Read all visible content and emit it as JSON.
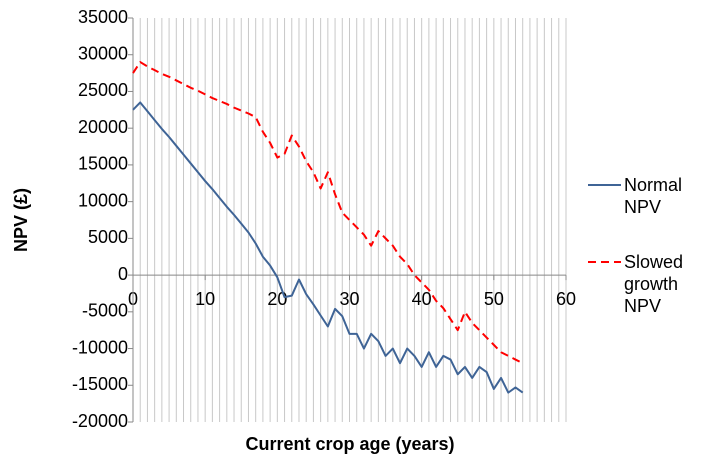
{
  "chart_data": {
    "type": "line",
    "x_label": "Current crop age (years)",
    "y_label": "NPV (£)",
    "x": [
      0,
      1,
      2,
      3,
      4,
      5,
      6,
      7,
      8,
      9,
      10,
      11,
      12,
      13,
      14,
      15,
      16,
      17,
      18,
      19,
      20,
      21,
      22,
      23,
      24,
      25,
      26,
      27,
      28,
      29,
      30,
      31,
      32,
      33,
      34,
      35,
      36,
      37,
      38,
      39,
      40,
      41,
      42,
      43,
      44,
      45,
      46,
      47,
      48,
      49,
      50,
      51,
      52,
      53,
      54
    ],
    "series": [
      {
        "name": "Normal NPV",
        "color": "#3f6496",
        "dash": false,
        "values": [
          22500,
          23500,
          22300,
          21100,
          19900,
          18800,
          17600,
          16400,
          15200,
          14000,
          12800,
          11700,
          10500,
          9300,
          8200,
          7000,
          5800,
          4300,
          2500,
          1300,
          -300,
          -3000,
          -2800,
          -600,
          -2600,
          -4000,
          -5500,
          -7000,
          -4600,
          -5600,
          -8000,
          -8000,
          -10000,
          -8000,
          -9000,
          -11000,
          -10000,
          -12000,
          -10000,
          -11000,
          -12500,
          -10500,
          -12500,
          -11000,
          -11500,
          -13500,
          -12500,
          -14000,
          -12500,
          -13200,
          -15500,
          -14000,
          -16000,
          -15300,
          -16000
        ]
      },
      {
        "name": "Slowed growth NPV",
        "color": "#ff0000",
        "dash": true,
        "values": [
          27500,
          29000,
          28400,
          27900,
          27400,
          27000,
          26500,
          26000,
          25500,
          25100,
          24600,
          24100,
          23700,
          23300,
          22800,
          22400,
          22000,
          21500,
          19500,
          18000,
          16000,
          16500,
          19000,
          17500,
          15500,
          14000,
          11800,
          14000,
          11000,
          8500,
          7500,
          6500,
          5500,
          4000,
          6000,
          5000,
          4000,
          2500,
          1500,
          0,
          -1000,
          -2000,
          -3500,
          -4500,
          -6000,
          -7500,
          -5000,
          -6500,
          -7500,
          -8500,
          -9500,
          -10500,
          -11000,
          -11500,
          -12000
        ]
      }
    ],
    "xlim": [
      0,
      60
    ],
    "xticks": [
      0,
      10,
      20,
      30,
      40,
      50,
      60
    ],
    "ylim": [
      -20000,
      35000
    ],
    "yticks": [
      -20000,
      -15000,
      -10000,
      -5000,
      0,
      5000,
      10000,
      15000,
      20000,
      25000,
      30000,
      35000
    ],
    "x_minor_grid": 1,
    "legend": "right"
  }
}
